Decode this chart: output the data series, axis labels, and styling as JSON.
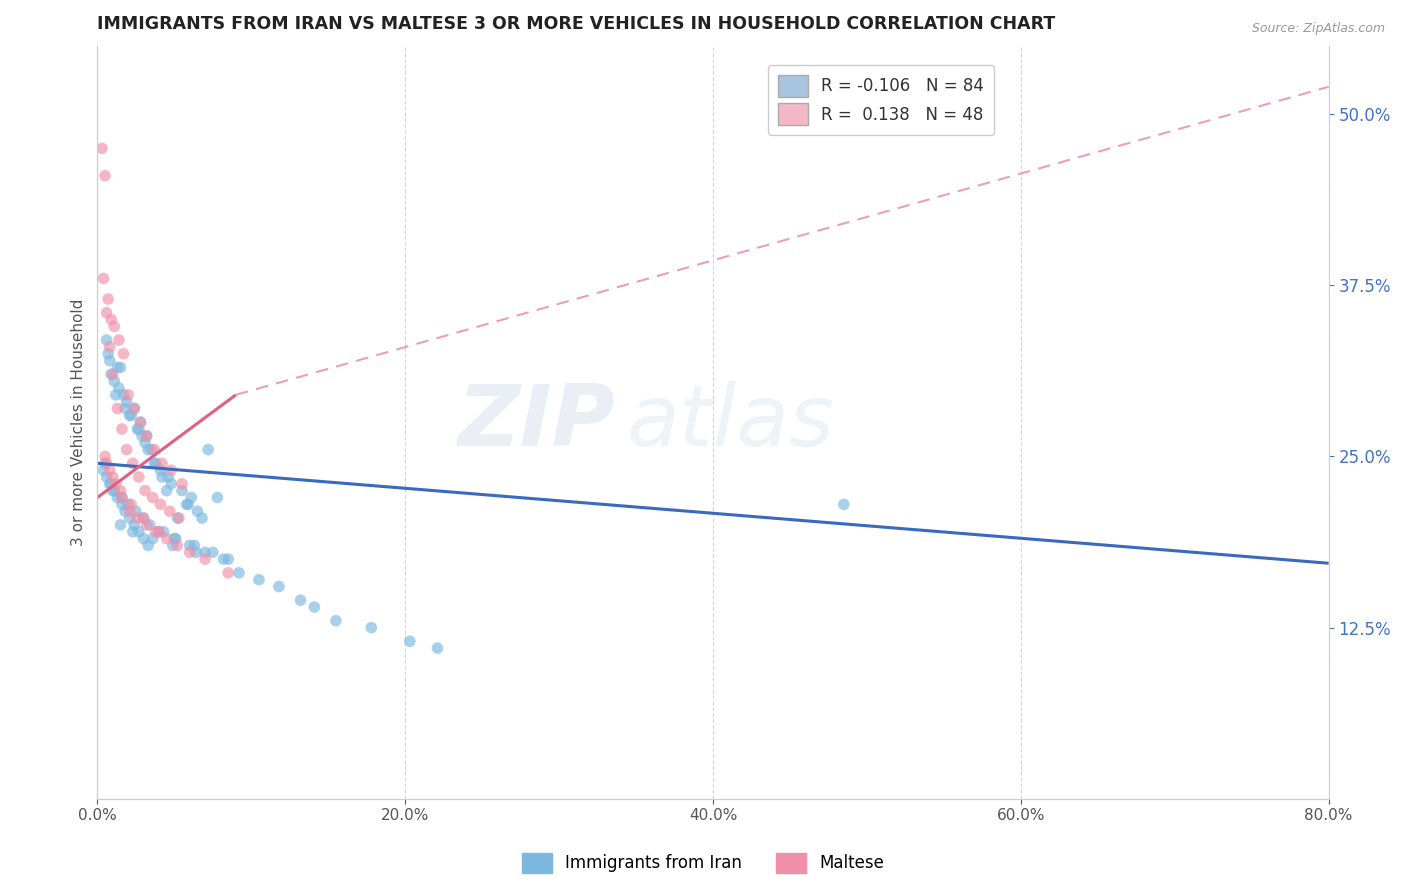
{
  "title": "IMMIGRANTS FROM IRAN VS MALTESE 3 OR MORE VEHICLES IN HOUSEHOLD CORRELATION CHART",
  "source": "Source: ZipAtlas.com",
  "ylabel": "3 or more Vehicles in Household",
  "xlim": [
    0.0,
    80.0
  ],
  "ylim": [
    0.0,
    55.0
  ],
  "xticks": [
    0.0,
    20.0,
    40.0,
    60.0,
    80.0
  ],
  "yticks_right": [
    12.5,
    25.0,
    37.5,
    50.0
  ],
  "watermark_zip": "ZIP",
  "watermark_atlas": "atlas",
  "legend_r1": "R = -0.106",
  "legend_n1": "N = 84",
  "legend_r2": "R =  0.138",
  "legend_n2": "N = 48",
  "legend_color1": "#a8c4e0",
  "legend_color2": "#f4b8c8",
  "iran_color": "#7ab8e0",
  "maltese_color": "#f090a8",
  "iran_trend_color": "#3a6abf",
  "maltese_solid_color": "#e06080",
  "maltese_dash_color": "#e8a0b8",
  "iran_x": [
    1.2,
    2.1,
    0.8,
    1.5,
    3.2,
    4.5,
    2.8,
    1.9,
    0.5,
    3.8,
    5.2,
    1.1,
    2.4,
    6.1,
    3.5,
    0.9,
    1.7,
    4.2,
    2.6,
    5.8,
    7.2,
    0.6,
    1.4,
    3.1,
    4.8,
    2.2,
    6.5,
    1.8,
    3.7,
    5.5,
    0.7,
    2.9,
    4.1,
    7.8,
    1.3,
    3.3,
    5.9,
    2.7,
    4.6,
    6.8,
    1.0,
    2.0,
    3.0,
    4.0,
    5.0,
    6.0,
    7.0,
    0.8,
    1.6,
    2.5,
    3.4,
    4.3,
    5.1,
    6.3,
    7.5,
    8.2,
    1.5,
    2.3,
    3.6,
    4.9,
    6.4,
    8.5,
    9.2,
    10.5,
    11.8,
    13.2,
    14.1,
    15.5,
    17.8,
    20.3,
    22.1,
    0.4,
    0.6,
    0.9,
    1.1,
    1.3,
    1.6,
    1.8,
    2.1,
    2.4,
    2.7,
    3.0,
    3.3,
    48.5
  ],
  "iran_y": [
    29.5,
    28.0,
    32.0,
    31.5,
    26.5,
    22.5,
    27.5,
    29.0,
    24.5,
    24.5,
    20.5,
    30.5,
    28.5,
    22.0,
    25.5,
    31.0,
    29.5,
    23.5,
    27.0,
    21.5,
    25.5,
    33.5,
    30.0,
    26.0,
    23.0,
    28.0,
    21.0,
    28.5,
    24.5,
    22.5,
    32.5,
    26.5,
    24.0,
    22.0,
    31.5,
    25.5,
    21.5,
    27.0,
    23.5,
    20.5,
    22.5,
    21.5,
    20.5,
    19.5,
    19.0,
    18.5,
    18.0,
    23.0,
    22.0,
    21.0,
    20.0,
    19.5,
    19.0,
    18.5,
    18.0,
    17.5,
    20.0,
    19.5,
    19.0,
    18.5,
    18.0,
    17.5,
    16.5,
    16.0,
    15.5,
    14.5,
    14.0,
    13.0,
    12.5,
    11.5,
    11.0,
    24.0,
    23.5,
    23.0,
    22.5,
    22.0,
    21.5,
    21.0,
    20.5,
    20.0,
    19.5,
    19.0,
    18.5,
    21.5
  ],
  "maltese_x": [
    0.3,
    0.5,
    0.7,
    0.9,
    1.1,
    1.4,
    1.7,
    2.0,
    2.4,
    2.8,
    3.2,
    3.7,
    4.2,
    4.8,
    5.5,
    0.4,
    0.6,
    0.8,
    1.0,
    1.3,
    1.6,
    1.9,
    2.3,
    2.7,
    3.1,
    3.6,
    4.1,
    4.7,
    5.3,
    0.5,
    0.8,
    1.2,
    1.6,
    2.1,
    2.6,
    3.2,
    3.8,
    4.5,
    5.2,
    6.0,
    7.0,
    8.5,
    0.6,
    1.0,
    1.5,
    2.2,
    3.0,
    4.0
  ],
  "maltese_y": [
    47.5,
    45.5,
    36.5,
    35.0,
    34.5,
    33.5,
    32.5,
    29.5,
    28.5,
    27.5,
    26.5,
    25.5,
    24.5,
    24.0,
    23.0,
    38.0,
    35.5,
    33.0,
    31.0,
    28.5,
    27.0,
    25.5,
    24.5,
    23.5,
    22.5,
    22.0,
    21.5,
    21.0,
    20.5,
    25.0,
    24.0,
    23.0,
    22.0,
    21.0,
    20.5,
    20.0,
    19.5,
    19.0,
    18.5,
    18.0,
    17.5,
    16.5,
    24.5,
    23.5,
    22.5,
    21.5,
    20.5,
    19.5
  ],
  "iran_trend_x0": 0.0,
  "iran_trend_x1": 80.0,
  "iran_trend_y0": 24.5,
  "iran_trend_y1": 17.2,
  "maltese_solid_x0": 0.0,
  "maltese_solid_x1": 9.0,
  "maltese_solid_y0": 22.0,
  "maltese_solid_y1": 29.5,
  "maltese_dash_x0": 9.0,
  "maltese_dash_x1": 80.0,
  "maltese_dash_y0": 29.5,
  "maltese_dash_y1": 52.0,
  "background_color": "#ffffff",
  "grid_color": "#cccccc",
  "title_color": "#222222",
  "right_label_color": "#4472c4"
}
